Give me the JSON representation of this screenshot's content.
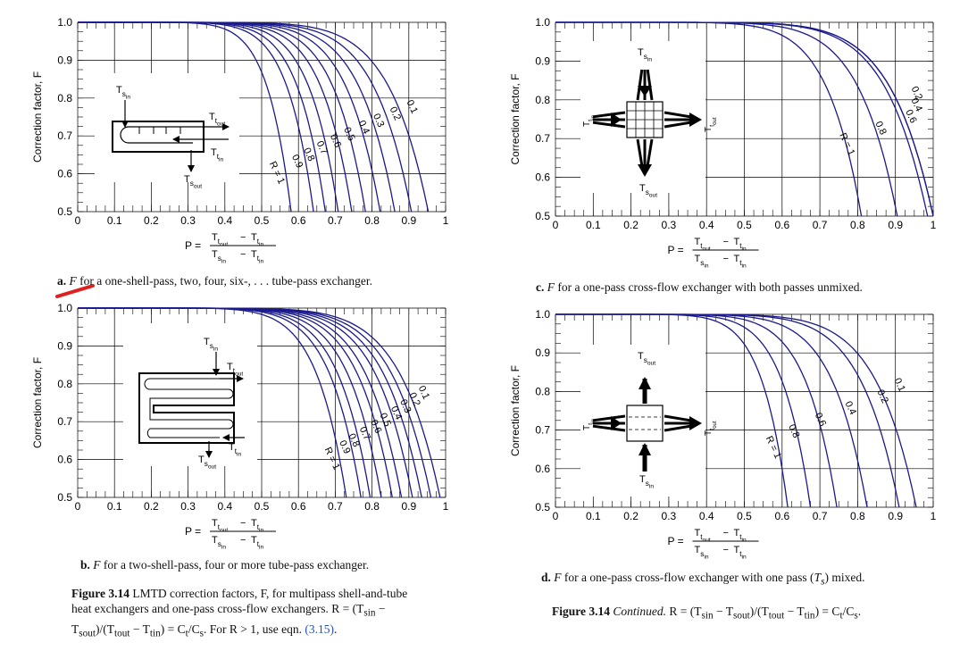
{
  "colors": {
    "curve": "#1a1a8c",
    "grid": "#000000",
    "annotation": "#e02020"
  },
  "chart_data": [
    {
      "id": "a",
      "type": "line",
      "title": "a. F for a one-shell-pass, two, four, six-, ... tube-pass exchanger.",
      "ylabel": "Correction factor, F",
      "xlabel": "P = (T_tout − T_tin)/(T_sin − T_tin)",
      "xlim": [
        0,
        1
      ],
      "ylim": [
        0.5,
        1.0
      ],
      "xticks": [
        "0",
        "0.1",
        "0.2",
        "0.3",
        "0.4",
        "0.5",
        "0.6",
        "0.7",
        "0.8",
        "0.9",
        "1"
      ],
      "yticks": [
        "0.5",
        "0.6",
        "0.7",
        "0.8",
        "0.9",
        "1.0"
      ],
      "curve_labels": [
        "0.1",
        "0.2",
        "0.3",
        "0.4",
        "0.5",
        "0.6",
        "0.7",
        "0.8",
        "0.9",
        "R = 1"
      ],
      "series": [
        {
          "R": 0.1,
          "p_end": 0.953
        },
        {
          "R": 0.2,
          "p_end": 0.907
        },
        {
          "R": 0.3,
          "p_end": 0.862
        },
        {
          "R": 0.4,
          "p_end": 0.822
        },
        {
          "R": 0.5,
          "p_end": 0.782
        },
        {
          "R": 0.6,
          "p_end": 0.745
        },
        {
          "R": 0.7,
          "p_end": 0.708
        },
        {
          "R": 0.8,
          "p_end": 0.673
        },
        {
          "R": 0.9,
          "p_end": 0.641
        },
        {
          "R": 1.0,
          "p_end": 0.58
        }
      ],
      "schematic_labels": {
        "s_in": "T",
        "s_in_sub": "s",
        "s_in_subsub": "in",
        "t_out": "T",
        "t_out_sub": "t",
        "t_out_subsub": "out",
        "t_in": "T",
        "t_in_sub": "t",
        "t_in_subsub": "in",
        "s_out": "T",
        "s_out_sub": "s",
        "s_out_subsub": "out"
      }
    },
    {
      "id": "b",
      "type": "line",
      "title": "b. F for a two-shell-pass, four or more tube-pass exchanger.",
      "ylabel": "Correction factor, F",
      "xlabel": "P = (T_tout − T_tin)/(T_sin − T_tin)",
      "xlim": [
        0,
        1
      ],
      "ylim": [
        0.5,
        1.0
      ],
      "xticks": [
        "0",
        "0.1",
        "0.2",
        "0.3",
        "0.4",
        "0.5",
        "0.6",
        "0.7",
        "0.8",
        "0.9",
        "1"
      ],
      "yticks": [
        "0.5",
        "0.6",
        "0.7",
        "0.8",
        "0.9",
        "1.0"
      ],
      "curve_labels": [
        "0.1",
        "0.2",
        "0.3",
        "0.4",
        "0.5",
        "0.6",
        "0.7",
        "0.8",
        "0.9",
        "R = 1"
      ],
      "series": [
        {
          "R": 0.1,
          "p_end": 0.985
        },
        {
          "R": 0.2,
          "p_end": 0.96
        },
        {
          "R": 0.3,
          "p_end": 0.935
        },
        {
          "R": 0.4,
          "p_end": 0.91
        },
        {
          "R": 0.5,
          "p_end": 0.88
        },
        {
          "R": 0.6,
          "p_end": 0.855
        },
        {
          "R": 0.7,
          "p_end": 0.825
        },
        {
          "R": 0.8,
          "p_end": 0.795
        },
        {
          "R": 0.9,
          "p_end": 0.77
        },
        {
          "R": 1.0,
          "p_end": 0.73
        }
      ],
      "schematic_labels": {
        "s_in": "T",
        "s_in_sub": "s",
        "s_in_subsub": "in",
        "t_out": "T",
        "t_out_sub": "t",
        "t_out_subsub": "out",
        "t_in": "T",
        "t_in_sub": "t",
        "t_in_subsub": "in",
        "s_out": "T",
        "s_out_sub": "s",
        "s_out_subsub": "out"
      }
    },
    {
      "id": "c",
      "type": "line",
      "title": "c. F for a one-pass cross-flow exchanger with both passes unmixed.",
      "ylabel": "Correction factor, F",
      "xlabel": "P = (T_tout − T_tin)/(T_sin − T_tin)",
      "xlim": [
        0,
        1
      ],
      "ylim": [
        0.5,
        1.0
      ],
      "xticks": [
        "0",
        "0.1",
        "0.2",
        "0.3",
        "0.4",
        "0.5",
        "0.6",
        "0.7",
        "0.8",
        "0.9",
        "1"
      ],
      "yticks": [
        "0.5",
        "0.6",
        "0.7",
        "0.8",
        "0.9",
        "1.0"
      ],
      "curve_labels": [
        "0.2",
        "0.4",
        "0.6",
        "0.8",
        "R = 1"
      ],
      "series": [
        {
          "R": 0.2,
          "p_end": 1.0
        },
        {
          "R": 0.4,
          "p_end": 1.0
        },
        {
          "R": 0.6,
          "p_end": 0.985
        },
        {
          "R": 0.8,
          "p_end": 0.905
        },
        {
          "R": 1.0,
          "p_end": 0.81
        }
      ],
      "schematic_labels": {
        "s_in": "T",
        "s_in_sub": "s",
        "s_in_subsub": "in",
        "t_out": "T",
        "t_out_sub": "t",
        "t_out_subsub": "out",
        "t_in": "T",
        "t_in_sub": "t",
        "t_in_subsub": "in",
        "s_out": "T",
        "s_out_sub": "s",
        "s_out_subsub": "out"
      }
    },
    {
      "id": "d",
      "type": "line",
      "title": "d. F for a one-pass cross-flow exchanger with one pass (Ts) mixed.",
      "ylabel": "Correction factor, F",
      "xlabel": "P = (T_tout − T_tin)/(T_sin − T_tin)",
      "xlim": [
        0,
        1
      ],
      "ylim": [
        0.5,
        1.0
      ],
      "xticks": [
        "0",
        "0.1",
        "0.2",
        "0.3",
        "0.4",
        "0.5",
        "0.6",
        "0.7",
        "0.8",
        "0.9",
        "1"
      ],
      "yticks": [
        "0.5",
        "0.6",
        "0.7",
        "0.8",
        "0.9",
        "1.0"
      ],
      "curve_labels": [
        "0.1",
        "0.2",
        "0.4",
        "0.6",
        "0.8",
        "R = 1"
      ],
      "series": [
        {
          "R": 0.1,
          "p_end": 0.955
        },
        {
          "R": 0.2,
          "p_end": 0.91
        },
        {
          "R": 0.4,
          "p_end": 0.825
        },
        {
          "R": 0.6,
          "p_end": 0.745
        },
        {
          "R": 0.8,
          "p_end": 0.675
        },
        {
          "R": 1.0,
          "p_end": 0.615
        }
      ],
      "schematic_labels": {
        "s_in": "T",
        "s_in_sub": "s",
        "s_in_subsub": "in",
        "t_out": "T",
        "t_out_sub": "t",
        "t_out_subsub": "out",
        "t_in": "T",
        "t_in_sub": "t",
        "t_in_subsub": "in",
        "s_out": "T",
        "s_out_sub": "s",
        "s_out_subsub": "out"
      }
    }
  ],
  "axis_text": {
    "p_equals": "P =",
    "num": "T",
    "num_out_sub": "t",
    "num_out_subsub": "out",
    "minus": "−",
    "num_in_sub": "t",
    "num_in_subsub": "in",
    "den": "T",
    "den_in_sub": "s",
    "den_in_subsub": "in",
    "den2": "T",
    "den2_sub": "t",
    "den2_subsub": "in"
  },
  "captions": {
    "a_letter": "a.",
    "a_var": "F",
    "a_text": " for a one-shell-pass, two, four, six-, . . . tube-pass exchanger.",
    "b_letter": "b.",
    "b_var": "F",
    "b_text": " for a two-shell-pass, four or more tube-pass exchanger.",
    "c_letter": "c.",
    "c_var": "F",
    "c_text": " for a one-pass cross-flow exchanger with both passes unmixed.",
    "d_letter": "d.",
    "d_var": "F",
    "d_text": " for a one-pass cross-flow exchanger with one pass (",
    "d_ts": "T",
    "d_ts_sub": "s",
    "d_tail": ") mixed.",
    "fig_left_label": "Figure 3.14",
    "fig_left_text": "  LMTD correction factors, F, for multipass shell-and-tube heat exchangers and one-pass cross-flow exchangers. R = (T",
    "fig_left_mid": "sin",
    "fig_left_text2": " − T",
    "fig_left_sout": "sout",
    "fig_left_text3": ")/(T",
    "fig_left_tout": "tout",
    "fig_left_text4": " − T",
    "fig_left_tin": "tin",
    "fig_left_text5": ") = C",
    "fig_left_ct": "t",
    "fig_left_text6": "/C",
    "fig_left_cs": "s",
    "fig_left_text7": ". For R > 1, use eqn. ",
    "fig_left_ref": "(3.15)",
    "fig_left_end": ".",
    "fig_right_label": "Figure 3.14",
    "fig_right_cont": "  Continued.",
    "fig_right_text": " R = (T",
    "fig_right_sin": "sin",
    "fig_right_text2": " − T",
    "fig_right_sout": "sout",
    "fig_right_text3": ")/(T",
    "fig_right_tout": "tout",
    "fig_right_text4": " − T",
    "fig_right_tin": "tin",
    "fig_right_text5": ") = C",
    "fig_right_ct": "t",
    "fig_right_text6": "/C",
    "fig_right_cs": "s",
    "fig_right_end": "."
  }
}
